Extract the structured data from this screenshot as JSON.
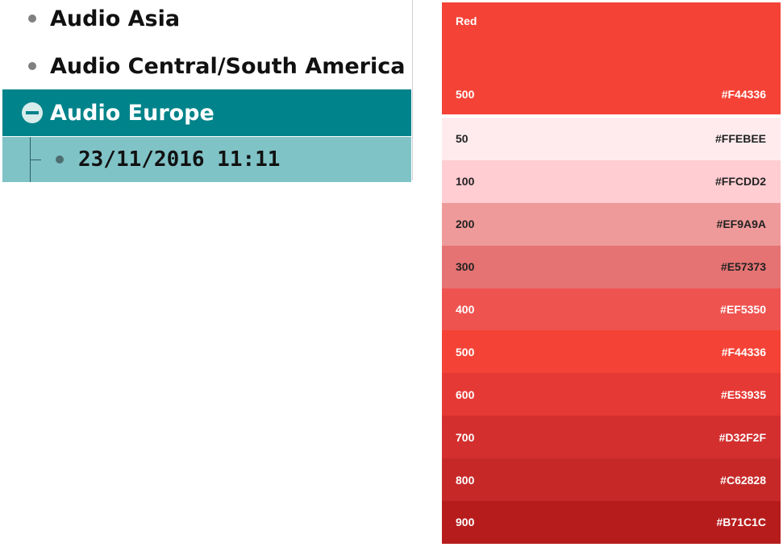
{
  "tree": {
    "items": [
      {
        "label": "Audio Asia"
      },
      {
        "label": "Audio Central/South America"
      },
      {
        "label": "Audio Europe"
      }
    ],
    "child": {
      "label": "23/11/2016 11:11"
    },
    "colors": {
      "selected_bg": "#00838A",
      "child_bg": "#80C3C7"
    }
  },
  "palette": {
    "name": "Red",
    "primary": {
      "shade": "500",
      "hex": "#F44336",
      "color": "#F44336",
      "text_color": "#FFFFFF"
    },
    "swatches": [
      {
        "shade": "50",
        "hex": "#FFEBEE",
        "color": "#FFEBEE",
        "text_color": "#222222"
      },
      {
        "shade": "100",
        "hex": "#FFCDD2",
        "color": "#FFCDD2",
        "text_color": "#222222"
      },
      {
        "shade": "200",
        "hex": "#EF9A9A",
        "color": "#EF9A9A",
        "text_color": "#222222"
      },
      {
        "shade": "300",
        "hex": "#E57373",
        "color": "#E57373",
        "text_color": "#222222"
      },
      {
        "shade": "400",
        "hex": "#EF5350",
        "color": "#EF5350",
        "text_color": "#FFFFFF"
      },
      {
        "shade": "500",
        "hex": "#F44336",
        "color": "#F44336",
        "text_color": "#FFFFFF"
      },
      {
        "shade": "600",
        "hex": "#E53935",
        "color": "#E53935",
        "text_color": "#FFFFFF"
      },
      {
        "shade": "700",
        "hex": "#D32F2F",
        "color": "#D32F2F",
        "text_color": "#FFFFFF"
      },
      {
        "shade": "800",
        "hex": "#C62828",
        "color": "#C62828",
        "text_color": "#FFFFFF"
      },
      {
        "shade": "900",
        "hex": "#B71C1C",
        "color": "#B71C1C",
        "text_color": "#FFFFFF"
      }
    ]
  }
}
